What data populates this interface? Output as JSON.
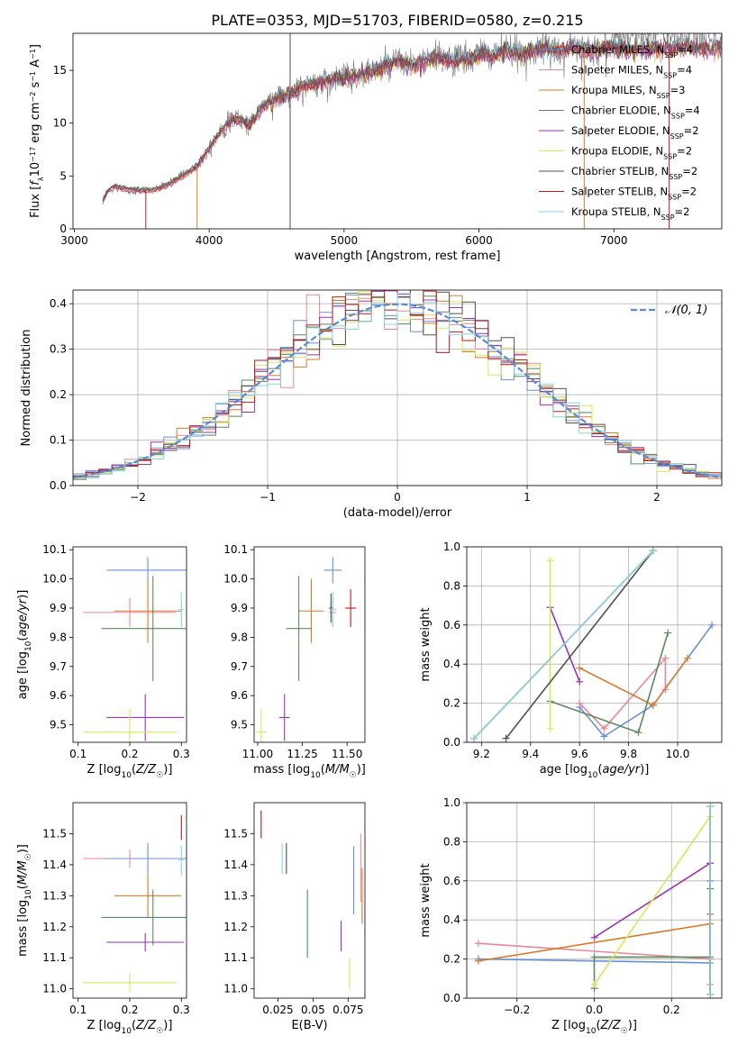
{
  "title": "PLATE=0353, MJD=51703, FIBERID=0580, z=0.215",
  "colors": {
    "Chabrier MILES": "#6890d8",
    "Salpeter MILES": "#e88898",
    "Kroupa MILES": "#d67c28",
    "Chabrier ELODIE": "#5a8a5e",
    "Salpeter ELODIE": "#9a34b4",
    "Kroupa ELODIE": "#d4e858",
    "Chabrier STELIB": "#505050",
    "Salpeter STELIB": "#b81c1c",
    "Kroupa STELIB": "#86d6de",
    "data": "#7a7a7a",
    "normal": "#5a8ad6"
  },
  "chart_data": [
    {
      "type": "line",
      "id": "spectrum",
      "xlabel": "wavelength [Angstrom, rest frame]",
      "ylabel": "Flux [f_λ 10^-17 erg cm^-2 s^-1 A^-1]",
      "xlim": [
        2990,
        7800
      ],
      "ylim": [
        0,
        18.5
      ],
      "xticks": [
        3000,
        4000,
        5000,
        6000,
        7000
      ],
      "yticks": [
        0,
        5,
        10,
        15
      ],
      "legend_position": "upper-right",
      "series": [
        {
          "name": "Chabrier MILES",
          "nssp": "4"
        },
        {
          "name": "Salpeter MILES",
          "nssp": "4"
        },
        {
          "name": "Kroupa MILES",
          "nssp": "3"
        },
        {
          "name": "Chabrier ELODIE",
          "nssp": "4"
        },
        {
          "name": "Salpeter ELODIE",
          "nssp": "2"
        },
        {
          "name": "Kroupa ELODIE",
          "nssp": "2"
        },
        {
          "name": "Chabrier STELIB",
          "nssp": "2"
        },
        {
          "name": "Salpeter STELIB",
          "nssp": "2"
        },
        {
          "name": "Kroupa STELIB",
          "nssp": "2"
        }
      ],
      "continuum": {
        "x": [
          3210,
          3250,
          3300,
          3400,
          3500,
          3600,
          3700,
          3800,
          3900,
          4000,
          4100,
          4200,
          4300,
          4400,
          4500,
          4600,
          4700,
          4800,
          4900,
          5000,
          5100,
          5200,
          5300,
          5400,
          5500,
          5600,
          5700,
          5800,
          5900,
          6000,
          6100,
          6200,
          6300,
          6400,
          6500,
          6600,
          6700,
          6800,
          6900,
          7000,
          7100,
          7200,
          7300,
          7400,
          7500,
          7600,
          7700,
          7800
        ],
        "y": [
          2.6,
          3.6,
          4.0,
          3.7,
          3.6,
          3.7,
          4.2,
          5.0,
          5.8,
          7.6,
          9.5,
          10.5,
          9.8,
          11.6,
          12.3,
          12.7,
          13.5,
          13.8,
          14.2,
          14.3,
          14.6,
          14.8,
          15.3,
          15.8,
          15.4,
          15.9,
          16.1,
          15.9,
          16.0,
          16.5,
          16.4,
          16.7,
          16.5,
          16.9,
          17.0,
          16.8,
          17.1,
          16.9,
          17.0,
          17.2,
          17.0,
          16.8,
          17.1,
          17.0,
          17.2,
          17.1,
          17.0,
          17.1
        ]
      }
    },
    {
      "type": "histogram",
      "id": "residuals",
      "xlabel": "(data-model)/error",
      "ylabel": "Normed distribution",
      "xlim": [
        -2.5,
        2.5
      ],
      "ylim": [
        0,
        0.43
      ],
      "xticks": [
        -2,
        -1,
        0,
        1,
        2
      ],
      "yticks": [
        0.0,
        0.1,
        0.2,
        0.3,
        0.4
      ],
      "grid": true,
      "legend_position": "upper-right",
      "legend": [
        "𝒩(0, 1)"
      ],
      "normal_curve": {
        "mean": 0,
        "sigma": 1
      }
    },
    {
      "type": "errorbar",
      "id": "z-age",
      "xlabel": "Z [log10(Z/Z☉)]",
      "ylabel": "age [log10(age/yr)]",
      "xlim": [
        0.09,
        0.31
      ],
      "ylim": [
        9.44,
        10.11
      ],
      "xticks": [
        0.1,
        0.2,
        0.3
      ],
      "yticks": [
        9.5,
        9.6,
        9.7,
        9.8,
        9.9,
        10.0,
        10.1
      ],
      "points": [
        {
          "model": "Chabrier MILES",
          "x": 0.235,
          "xerr": 0.08,
          "y": 10.03,
          "yerr": 0.045
        },
        {
          "model": "Salpeter MILES",
          "x": 0.2,
          "xerr": 0.09,
          "y": 9.885,
          "yerr": 0.05
        },
        {
          "model": "Kroupa MILES",
          "x": 0.235,
          "xerr": 0.065,
          "y": 9.89,
          "yerr": 0.11
        },
        {
          "model": "Chabrier ELODIE",
          "x": 0.245,
          "xerr": 0.1,
          "y": 9.83,
          "yerr": 0.18
        },
        {
          "model": "Kroupa STELIB",
          "x": 0.3,
          "xerr": 0.005,
          "y": 9.895,
          "yerr": 0.06
        },
        {
          "model": "Salpeter ELODIE",
          "x": 0.23,
          "xerr": 0.075,
          "y": 9.525,
          "yerr": 0.08
        },
        {
          "model": "Kroupa ELODIE",
          "x": 0.2,
          "xerr": 0.09,
          "y": 9.475,
          "yerr": 0.08
        }
      ]
    },
    {
      "type": "errorbar",
      "id": "mass-age",
      "xlabel": "mass [log10(M/M☉)]",
      "xlim": [
        10.98,
        11.6
      ],
      "ylim": [
        9.44,
        10.11
      ],
      "xticks": [
        11.0,
        11.25,
        11.5
      ],
      "yticks": [
        9.5,
        9.6,
        9.7,
        9.8,
        9.9,
        10.0,
        10.1
      ],
      "points": [
        {
          "model": "Chabrier MILES",
          "x": 11.42,
          "xerr": 0.05,
          "y": 10.03,
          "yerr": 0.045
        },
        {
          "model": "Salpeter MILES",
          "x": 11.42,
          "xerr": 0.02,
          "y": 9.885,
          "yerr": 0.05
        },
        {
          "model": "Kroupa MILES",
          "x": 11.3,
          "xerr": 0.07,
          "y": 9.89,
          "yerr": 0.11
        },
        {
          "model": "Chabrier ELODIE",
          "x": 11.23,
          "xerr": 0.07,
          "y": 9.83,
          "yerr": 0.18
        },
        {
          "model": "Chabrier STELIB",
          "x": 11.41,
          "xerr": 0.01,
          "y": 9.9,
          "yerr": 0.05
        },
        {
          "model": "Kroupa STELIB",
          "x": 11.42,
          "xerr": 0.02,
          "y": 9.895,
          "yerr": 0.06
        },
        {
          "model": "Salpeter STELIB",
          "x": 11.52,
          "xerr": 0.03,
          "y": 9.9,
          "yerr": 0.065
        },
        {
          "model": "Salpeter ELODIE",
          "x": 11.15,
          "xerr": 0.03,
          "y": 9.525,
          "yerr": 0.08
        },
        {
          "model": "Kroupa ELODIE",
          "x": 11.02,
          "xerr": 0.03,
          "y": 9.475,
          "yerr": 0.08
        }
      ]
    },
    {
      "type": "line",
      "id": "age-weight",
      "xlabel": "age [log10(age/yr)]",
      "ylabel": "mass weight",
      "xlim": [
        9.14,
        10.18
      ],
      "ylim": [
        0,
        1.0
      ],
      "xticks": [
        9.2,
        9.4,
        9.6,
        9.8,
        10.0
      ],
      "yticks": [
        0.0,
        0.2,
        0.4,
        0.6,
        0.8,
        1.0
      ],
      "grid": true,
      "series": [
        {
          "model": "Chabrier MILES",
          "x": [
            9.6,
            9.7,
            9.9,
            10.14
          ],
          "y": [
            0.18,
            0.03,
            0.19,
            0.6
          ]
        },
        {
          "model": "Salpeter MILES",
          "x": [
            9.6,
            9.7,
            9.95,
            9.95
          ],
          "y": [
            0.2,
            0.07,
            0.43,
            0.27
          ]
        },
        {
          "model": "Kroupa MILES",
          "x": [
            9.6,
            9.9,
            10.04
          ],
          "y": [
            0.38,
            0.19,
            0.43
          ]
        },
        {
          "model": "Chabrier ELODIE",
          "x": [
            9.48,
            9.84,
            9.96
          ],
          "y": [
            0.21,
            0.05,
            0.56
          ]
        },
        {
          "model": "Salpeter ELODIE",
          "x": [
            9.48,
            9.6
          ],
          "y": [
            0.69,
            0.31
          ]
        },
        {
          "model": "Kroupa ELODIE",
          "x": [
            9.48,
            9.48
          ],
          "y": [
            0.93,
            0.07
          ]
        },
        {
          "model": "Chabrier STELIB",
          "x": [
            9.3,
            9.9
          ],
          "y": [
            0.02,
            0.98
          ]
        },
        {
          "model": "Salpeter STELIB",
          "x": [
            9.17,
            9.9
          ],
          "y": [
            0.02,
            0.98
          ]
        },
        {
          "model": "Kroupa STELIB",
          "x": [
            9.17,
            9.9
          ],
          "y": [
            0.02,
            0.98
          ]
        }
      ]
    },
    {
      "type": "errorbar",
      "id": "z-mass",
      "xlabel": "Z [log10(Z/Z☉)]",
      "ylabel": "mass [log10(M/M☉)]",
      "xlim": [
        0.09,
        0.31
      ],
      "ylim": [
        10.97,
        11.6
      ],
      "xticks": [
        0.1,
        0.2,
        0.3
      ],
      "yticks": [
        11.0,
        11.1,
        11.2,
        11.3,
        11.4,
        11.5
      ],
      "points": [
        {
          "model": "Salpeter STELIB",
          "x": 0.3,
          "xerr": 0.0,
          "y": 11.52,
          "yerr": 0.04
        },
        {
          "model": "Salpeter MILES",
          "x": 0.2,
          "xerr": 0.09,
          "y": 11.42,
          "yerr": 0.03
        },
        {
          "model": "Chabrier MILES",
          "x": 0.235,
          "xerr": 0.08,
          "y": 11.42,
          "yerr": 0.05
        },
        {
          "model": "Kroupa STELIB",
          "x": 0.3,
          "xerr": 0.005,
          "y": 11.415,
          "yerr": 0.05
        },
        {
          "model": "Kroupa MILES",
          "x": 0.235,
          "xerr": 0.065,
          "y": 11.3,
          "yerr": 0.07
        },
        {
          "model": "Chabrier ELODIE",
          "x": 0.245,
          "xerr": 0.1,
          "y": 11.23,
          "yerr": 0.09
        },
        {
          "model": "Salpeter ELODIE",
          "x": 0.23,
          "xerr": 0.075,
          "y": 11.15,
          "yerr": 0.03
        },
        {
          "model": "Kroupa ELODIE",
          "x": 0.2,
          "xerr": 0.09,
          "y": 11.02,
          "yerr": 0.03
        }
      ]
    },
    {
      "type": "errorbar",
      "id": "ebv-mass",
      "xlabel": "E(B-V)",
      "xlim": [
        0.008,
        0.087
      ],
      "ylim": [
        10.97,
        11.6
      ],
      "xticks": [
        0.025,
        0.05,
        0.075
      ],
      "yticks": [
        11.0,
        11.1,
        11.2,
        11.3,
        11.4,
        11.5
      ],
      "points": [
        {
          "model": "Salpeter STELIB",
          "x": 0.013,
          "y": 11.53,
          "yerr": 0.045
        },
        {
          "model": "Kroupa STELIB",
          "x": 0.028,
          "y": 11.42,
          "yerr": 0.05
        },
        {
          "model": "Chabrier STELIB",
          "x": 0.031,
          "y": 11.42,
          "yerr": 0.05
        },
        {
          "model": "Chabrier ELODIE",
          "x": 0.046,
          "y": 11.21,
          "yerr": 0.11
        },
        {
          "model": "Salpeter ELODIE",
          "x": 0.07,
          "y": 11.17,
          "yerr": 0.05
        },
        {
          "model": "Kroupa ELODIE",
          "x": 0.076,
          "y": 11.05,
          "yerr": 0.05
        },
        {
          "model": "Chabrier MILES",
          "x": 0.079,
          "y": 11.35,
          "yerr": 0.11
        },
        {
          "model": "Salpeter MILES",
          "x": 0.084,
          "y": 11.39,
          "yerr": 0.11
        },
        {
          "model": "Kroupa MILES",
          "x": 0.085,
          "y": 11.3,
          "yerr": 0.09
        }
      ]
    },
    {
      "type": "line",
      "id": "z-weight",
      "xlabel": "Z [log10(Z/Z☉)]",
      "ylabel": "mass weight",
      "xlim": [
        -0.33,
        0.33
      ],
      "ylim": [
        0,
        1.0
      ],
      "xticks": [
        -0.2,
        0.0,
        0.2
      ],
      "yticks": [
        0.0,
        0.2,
        0.4,
        0.6,
        0.8,
        1.0
      ],
      "grid": true,
      "series": [
        {
          "model": "Chabrier MILES",
          "x": [
            -0.3,
            0.3,
            0.3
          ],
          "y": [
            0.2,
            0.18,
            0.6
          ]
        },
        {
          "model": "Salpeter MILES",
          "x": [
            -0.3,
            0.3,
            0.3,
            0.3
          ],
          "y": [
            0.28,
            0.2,
            0.43,
            0.07
          ]
        },
        {
          "model": "Kroupa MILES",
          "x": [
            -0.3,
            0.3,
            0.3
          ],
          "y": [
            0.19,
            0.38,
            0.43
          ]
        },
        {
          "model": "Chabrier ELODIE",
          "x": [
            0.0,
            0.0,
            0.3,
            0.3
          ],
          "y": [
            0.05,
            0.21,
            0.21,
            0.56
          ]
        },
        {
          "model": "Salpeter ELODIE",
          "x": [
            0.0,
            0.3
          ],
          "y": [
            0.31,
            0.69
          ]
        },
        {
          "model": "Kroupa ELODIE",
          "x": [
            0.0,
            0.3
          ],
          "y": [
            0.07,
            0.93
          ]
        },
        {
          "model": "Chabrier STELIB",
          "x": [
            0.3,
            0.3
          ],
          "y": [
            0.02,
            0.98
          ]
        },
        {
          "model": "Salpeter STELIB",
          "x": [
            0.3,
            0.3
          ],
          "y": [
            0.02,
            0.98
          ]
        },
        {
          "model": "Kroupa STELIB",
          "x": [
            0.3,
            0.3
          ],
          "y": [
            0.02,
            0.98
          ]
        }
      ]
    }
  ]
}
